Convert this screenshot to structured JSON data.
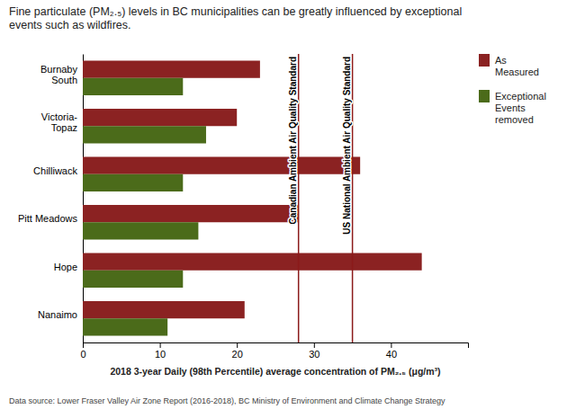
{
  "chart_data": {
    "type": "bar",
    "orientation": "horizontal",
    "title": "Fine particulate (PM₂.₅) levels in BC municipalities can be greatly influenced by exceptional\nevents such as wildfires.",
    "x_label": "2018 3-year Daily (98th Percentile) average concentration of PM₂.₅ (μg/m³)",
    "caption": "Data source:   Lower Fraser Valley Air Zone Report (2016-2018), BC Ministry of Environment and Climate Change Strategy",
    "categories": [
      "Nanaimo",
      "Hope",
      "Pitt Meadows",
      "Chilliwack",
      "Victoria-\nTopaz",
      "Burnaby\nSouth"
    ],
    "series": [
      {
        "name": "As\nMeasured",
        "color": "#8B2222",
        "values": [
          21,
          44,
          28,
          36,
          20,
          23
        ]
      },
      {
        "name": "Exceptional\nEvents\nremoved",
        "color": "#4B6B1A",
        "values": [
          11,
          13,
          15,
          13,
          16,
          13
        ]
      }
    ],
    "annotations": [
      {
        "text": "Canadian Ambient Air Quality Standard",
        "x": 28,
        "color": "#8B1A1A"
      },
      {
        "text": "US National Ambient Air Quality Standard",
        "x": 35,
        "color": "#8B1A1A"
      }
    ],
    "xlim": [
      0,
      50
    ],
    "xticks": [
      0,
      10,
      20,
      30,
      40
    ],
    "grid": false,
    "legend": "upper right"
  }
}
